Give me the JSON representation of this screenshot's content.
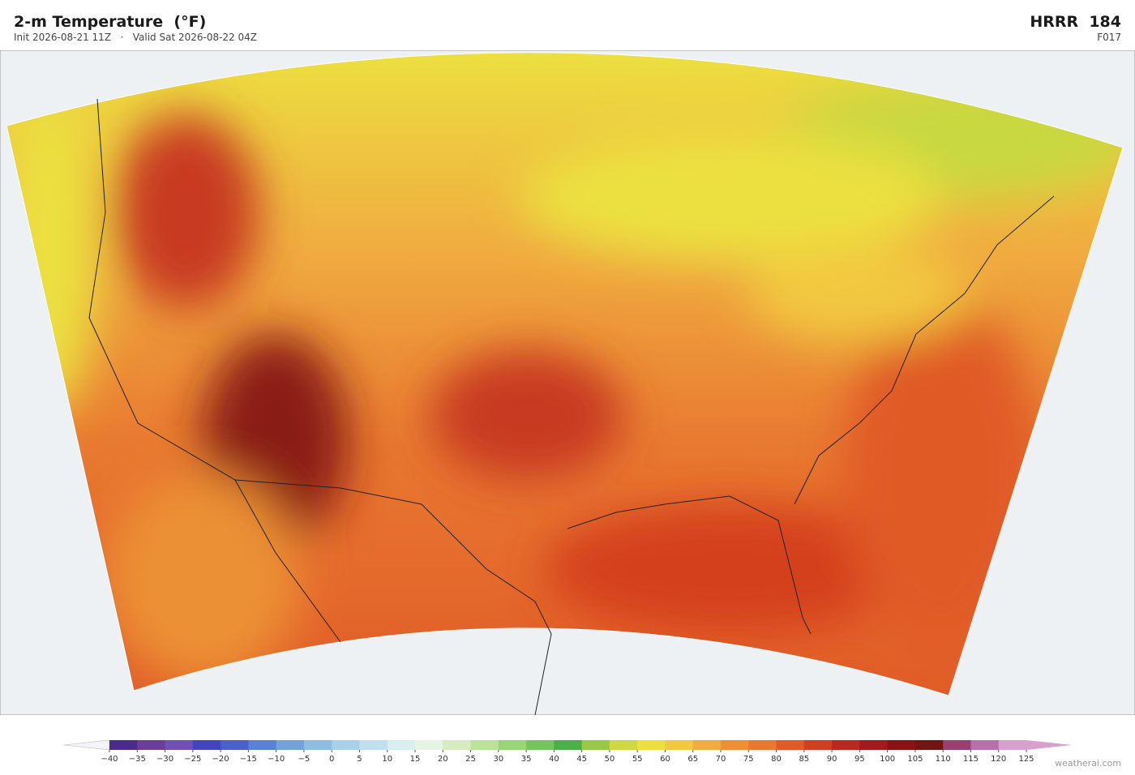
{
  "header": {
    "title": "2-m Temperature  (°F)",
    "subtitle": "Init 2026-08-21 11Z   ·   Valid Sat 2026-08-22 04Z",
    "model": "HRRR  184",
    "forecast_hour": "F017"
  },
  "colorbar": {
    "ticks": [
      {
        "value": -40,
        "label": "−40"
      },
      {
        "value": -35,
        "label": "−35"
      },
      {
        "value": -30,
        "label": "−30"
      },
      {
        "value": -25,
        "label": "−25"
      },
      {
        "value": -20,
        "label": "−20"
      },
      {
        "value": -15,
        "label": "−15"
      },
      {
        "value": -10,
        "label": "−10"
      },
      {
        "value": -5,
        "label": "−5"
      },
      0,
      5,
      10,
      15,
      20,
      25,
      30,
      35,
      40,
      45,
      50,
      55,
      60,
      65,
      70,
      75,
      80,
      85,
      90,
      95,
      100,
      105,
      110,
      115,
      120,
      125
    ],
    "colors": [
      "#4b2c8c",
      "#6a3d9a",
      "#7050b0",
      "#4444c0",
      "#4a62c8",
      "#5a82d2",
      "#72a2d8",
      "#90bce0",
      "#a8d0e8",
      "#c0e0ee",
      "#d8eef0",
      "#e6f4e4",
      "#d4ecc0",
      "#bce29a",
      "#98d478",
      "#74c460",
      "#4caf4a",
      "#98c848",
      "#cfd840",
      "#ece040",
      "#f2c840",
      "#f0ac40",
      "#ec9036",
      "#e87830",
      "#e05a28",
      "#d04020",
      "#b82a20",
      "#a01c1c",
      "#861414",
      "#701414",
      "#9a4070",
      "#b870a8",
      "#d8a0cc"
    ],
    "under_color": "#f4f4f8",
    "over_color": "#d8a0cc"
  },
  "watermark": "weatherai.com"
}
